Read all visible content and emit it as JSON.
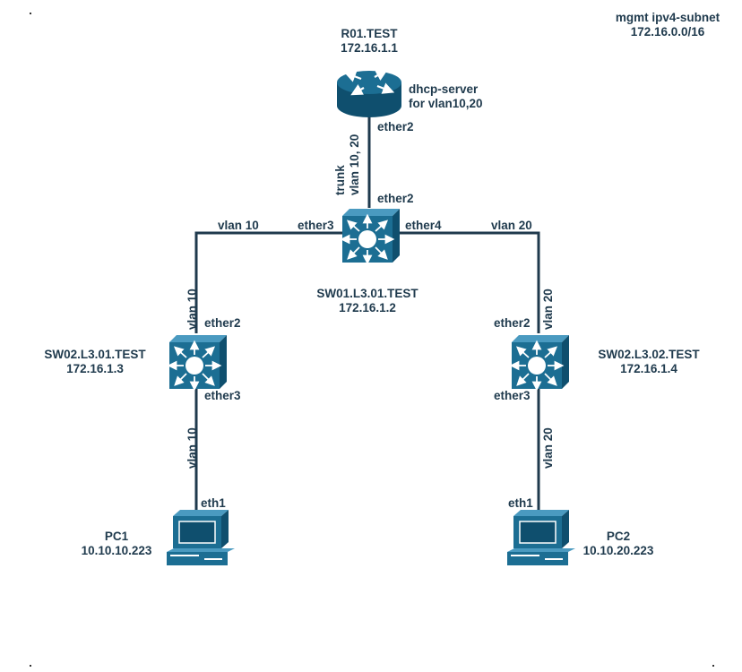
{
  "mgmt": {
    "title": "mgmt ipv4-subnet",
    "subnet": "172.16.0.0/16"
  },
  "nodes": {
    "r01": {
      "name": "R01.TEST",
      "ip": "172.16.1.1",
      "icon": "router-icon",
      "note_line1": "dhcp-server",
      "note_line2": "for vlan10,20"
    },
    "sw01": {
      "name": "SW01.L3.01.TEST",
      "ip": "172.16.1.2",
      "icon": "l3-switch-icon"
    },
    "sw02a": {
      "name": "SW02.L3.01.TEST",
      "ip": "172.16.1.3",
      "icon": "l3-switch-icon"
    },
    "sw02b": {
      "name": "SW02.L3.02.TEST",
      "ip": "172.16.1.4",
      "icon": "l3-switch-icon"
    },
    "pc1": {
      "name": "PC1",
      "ip": "10.10.10.223",
      "icon": "workstation-icon"
    },
    "pc2": {
      "name": "PC2",
      "ip": "10.10.20.223",
      "icon": "workstation-icon"
    }
  },
  "ports": {
    "r01_ether2": "ether2",
    "sw01_ether2": "ether2",
    "sw01_ether3": "ether3",
    "sw01_ether4": "ether4",
    "sw02a_ether2": "ether2",
    "sw02a_ether3": "ether3",
    "sw02b_ether2": "ether2",
    "sw02b_ether3": "ether3",
    "pc1_eth1": "eth1",
    "pc2_eth1": "eth1"
  },
  "links": {
    "trunk_line1": "trunk",
    "trunk_line2": "vlan 10, 20",
    "sw01_sw02a_h": "vlan 10",
    "sw01_sw02a_v": "vlan 10",
    "sw01_sw02b_h": "vlan 20",
    "sw01_sw02b_v": "vlan 20",
    "sw02a_pc1": "vlan 10",
    "sw02b_pc2": "vlan 20"
  },
  "colors": {
    "device_fill": "#1c6e93",
    "device_dark": "#0f4f6e",
    "link": "#1f3a4d",
    "text": "#1f3a4d"
  }
}
